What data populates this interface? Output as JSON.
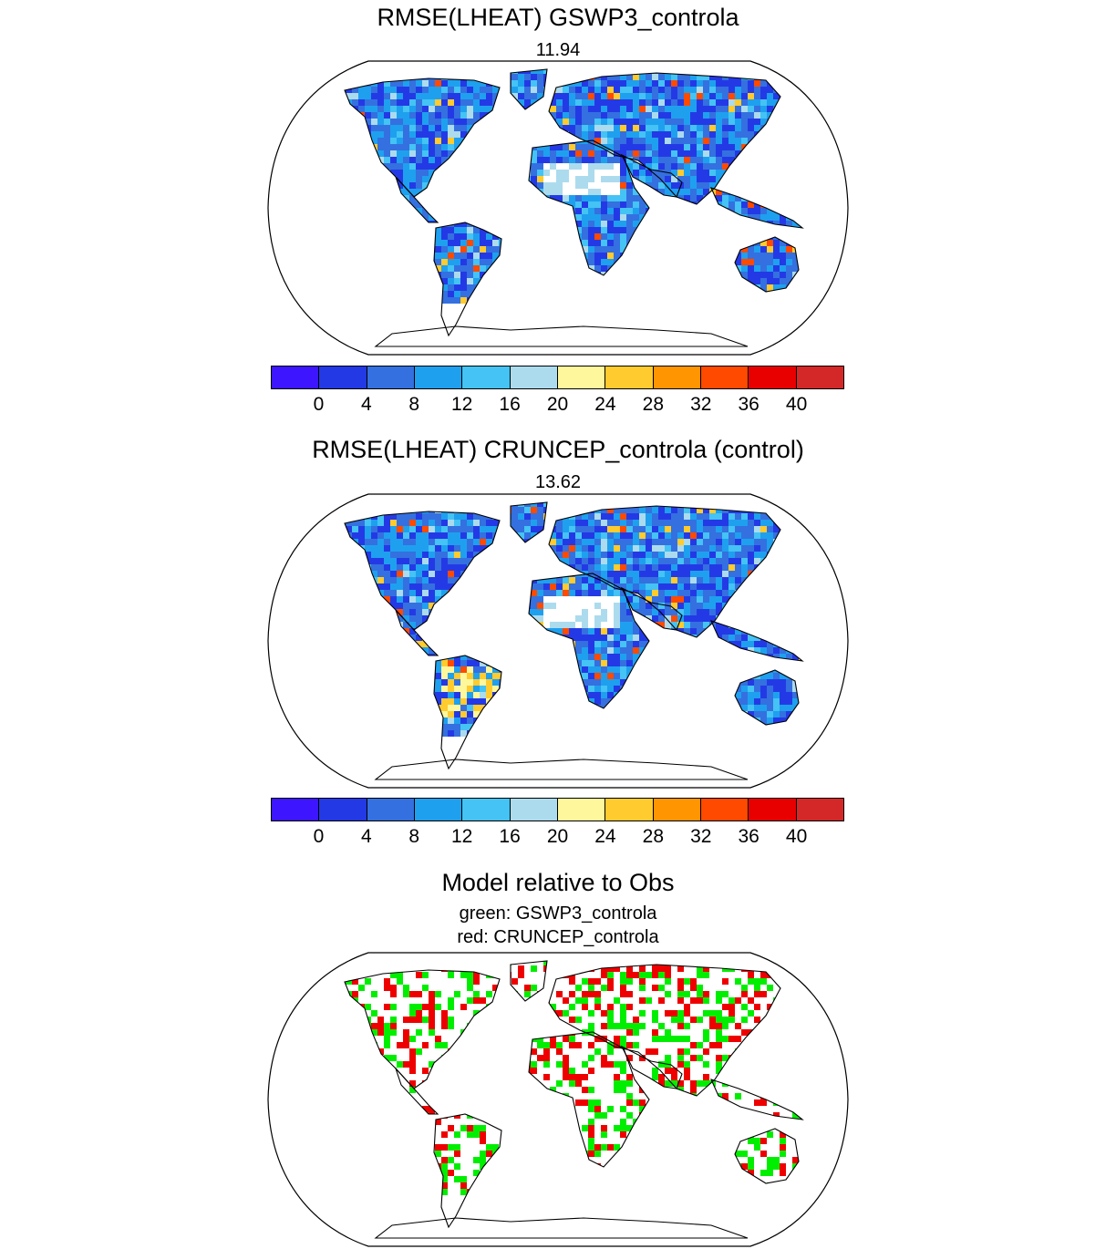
{
  "colors": {
    "scale": [
      "#3d16ff",
      "#2439e6",
      "#3470e0",
      "#1ea0ef",
      "#44c3f4",
      "#acdbee",
      "#fff79c",
      "#ffcb2e",
      "#ff9500",
      "#ff4a00",
      "#e80000",
      "#d42828"
    ],
    "land_blue": "#4a8fe6",
    "green": "#00ee00",
    "red": "#ee0000",
    "outline": "#000000"
  },
  "panel1": {
    "title": "RMSE(LHEAT) GSWP3_controla",
    "value": "11.94"
  },
  "panel2": {
    "title": "RMSE(LHEAT) CRUNCEP_controla (control)",
    "value": "13.62"
  },
  "colorbar": {
    "tick_labels": [
      "0",
      "4",
      "8",
      "12",
      "16",
      "20",
      "24",
      "28",
      "32",
      "36",
      "40"
    ]
  },
  "panel3": {
    "title": "Model relative to Obs",
    "line1": "green: GSWP3_controla",
    "line2": "red: CRUNCEP_controla"
  }
}
